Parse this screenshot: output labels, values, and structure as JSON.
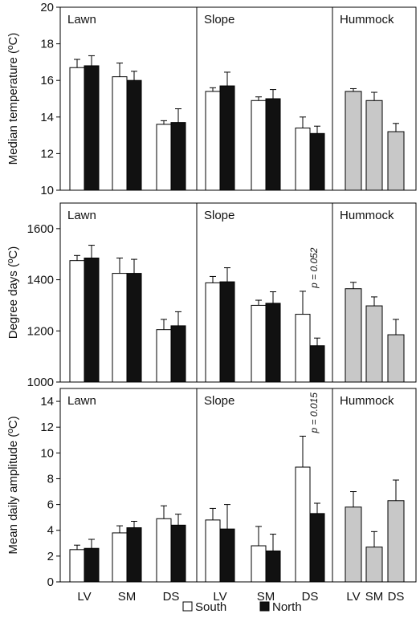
{
  "chart_data": {
    "type": "bar",
    "legend": {
      "placement": "bottom-center",
      "entries": [
        {
          "key": "south",
          "label": "South",
          "fill": "#ffffff"
        },
        {
          "key": "north",
          "label": "North",
          "fill": "#111111"
        }
      ]
    },
    "x_tick_labels": [
      "LV",
      "SM",
      "DS",
      "LV",
      "SM",
      "DS",
      "LV",
      "SM",
      "DS"
    ],
    "section_labels": [
      "Lawn",
      "Slope",
      "Hummock"
    ],
    "colors": {
      "south": "#ffffff",
      "north": "#111111",
      "hummock": "#c8c8c8",
      "axis": "#000000"
    },
    "panels": [
      {
        "id": "median",
        "ylabel": "Median temperature (ºC)",
        "ylim": [
          10,
          20
        ],
        "yticks": [
          10,
          12,
          14,
          16,
          18,
          20
        ],
        "sections": [
          {
            "label": "Lawn",
            "groups": [
              {
                "category": "LV",
                "bars": [
                  {
                    "series": "south",
                    "value": 16.7,
                    "err": 0.45
                  },
                  {
                    "series": "north",
                    "value": 16.8,
                    "err": 0.55
                  }
                ]
              },
              {
                "category": "SM",
                "bars": [
                  {
                    "series": "south",
                    "value": 16.2,
                    "err": 0.75
                  },
                  {
                    "series": "north",
                    "value": 16.0,
                    "err": 0.5
                  }
                ]
              },
              {
                "category": "DS",
                "bars": [
                  {
                    "series": "south",
                    "value": 13.6,
                    "err": 0.2
                  },
                  {
                    "series": "north",
                    "value": 13.7,
                    "err": 0.75
                  }
                ]
              }
            ]
          },
          {
            "label": "Slope",
            "groups": [
              {
                "category": "LV",
                "bars": [
                  {
                    "series": "south",
                    "value": 15.4,
                    "err": 0.2
                  },
                  {
                    "series": "north",
                    "value": 15.7,
                    "err": 0.75
                  }
                ]
              },
              {
                "category": "SM",
                "bars": [
                  {
                    "series": "south",
                    "value": 14.9,
                    "err": 0.2
                  },
                  {
                    "series": "north",
                    "value": 15.0,
                    "err": 0.5
                  }
                ]
              },
              {
                "category": "DS",
                "bars": [
                  {
                    "series": "south",
                    "value": 13.4,
                    "err": 0.6
                  },
                  {
                    "series": "north",
                    "value": 13.1,
                    "err": 0.4
                  }
                ]
              }
            ]
          },
          {
            "label": "Hummock",
            "groups": [
              {
                "category": "LV",
                "bars": [
                  {
                    "series": "hummock",
                    "value": 15.4,
                    "err": 0.15
                  }
                ]
              },
              {
                "category": "SM",
                "bars": [
                  {
                    "series": "hummock",
                    "value": 14.9,
                    "err": 0.45
                  }
                ]
              },
              {
                "category": "DS",
                "bars": [
                  {
                    "series": "hummock",
                    "value": 13.2,
                    "err": 0.45
                  }
                ]
              }
            ]
          }
        ]
      },
      {
        "id": "degree-days",
        "ylabel": "Degree days (ºC)",
        "ylim": [
          1000,
          1700
        ],
        "yticks": [
          1000,
          1200,
          1400,
          1600
        ],
        "sections": [
          {
            "label": "Lawn",
            "groups": [
              {
                "category": "LV",
                "bars": [
                  {
                    "series": "south",
                    "value": 1475,
                    "err": 20
                  },
                  {
                    "series": "north",
                    "value": 1485,
                    "err": 50
                  }
                ]
              },
              {
                "category": "SM",
                "bars": [
                  {
                    "series": "south",
                    "value": 1425,
                    "err": 60
                  },
                  {
                    "series": "north",
                    "value": 1425,
                    "err": 55
                  }
                ]
              },
              {
                "category": "DS",
                "bars": [
                  {
                    "series": "south",
                    "value": 1205,
                    "err": 40
                  },
                  {
                    "series": "north",
                    "value": 1220,
                    "err": 55
                  }
                ]
              }
            ]
          },
          {
            "label": "Slope",
            "groups": [
              {
                "category": "LV",
                "bars": [
                  {
                    "series": "south",
                    "value": 1388,
                    "err": 25
                  },
                  {
                    "series": "north",
                    "value": 1392,
                    "err": 55
                  }
                ]
              },
              {
                "category": "SM",
                "bars": [
                  {
                    "series": "south",
                    "value": 1300,
                    "err": 20
                  },
                  {
                    "series": "north",
                    "value": 1308,
                    "err": 45
                  }
                ]
              },
              {
                "category": "DS",
                "annotation": "p = 0.052",
                "bars": [
                  {
                    "series": "south",
                    "value": 1265,
                    "err": 90
                  },
                  {
                    "series": "north",
                    "value": 1142,
                    "err": 30
                  }
                ]
              }
            ]
          },
          {
            "label": "Hummock",
            "groups": [
              {
                "category": "LV",
                "bars": [
                  {
                    "series": "hummock",
                    "value": 1365,
                    "err": 25
                  }
                ]
              },
              {
                "category": "SM",
                "bars": [
                  {
                    "series": "hummock",
                    "value": 1298,
                    "err": 35
                  }
                ]
              },
              {
                "category": "DS",
                "bars": [
                  {
                    "series": "hummock",
                    "value": 1185,
                    "err": 60
                  }
                ]
              }
            ]
          }
        ]
      },
      {
        "id": "amplitude",
        "ylabel": "Mean daily amplitude (ºC)",
        "ylim": [
          0,
          15
        ],
        "yticks": [
          0,
          2,
          4,
          6,
          8,
          10,
          12,
          14
        ],
        "sections": [
          {
            "label": "Lawn",
            "groups": [
              {
                "category": "LV",
                "bars": [
                  {
                    "series": "south",
                    "value": 2.5,
                    "err": 0.35
                  },
                  {
                    "series": "north",
                    "value": 2.6,
                    "err": 0.7
                  }
                ]
              },
              {
                "category": "SM",
                "bars": [
                  {
                    "series": "south",
                    "value": 3.8,
                    "err": 0.55
                  },
                  {
                    "series": "north",
                    "value": 4.2,
                    "err": 0.5
                  }
                ]
              },
              {
                "category": "DS",
                "bars": [
                  {
                    "series": "south",
                    "value": 4.9,
                    "err": 1.0
                  },
                  {
                    "series": "north",
                    "value": 4.4,
                    "err": 0.85
                  }
                ]
              }
            ]
          },
          {
            "label": "Slope",
            "groups": [
              {
                "category": "LV",
                "bars": [
                  {
                    "series": "south",
                    "value": 4.8,
                    "err": 0.9
                  },
                  {
                    "series": "north",
                    "value": 4.1,
                    "err": 1.9
                  }
                ]
              },
              {
                "category": "SM",
                "bars": [
                  {
                    "series": "south",
                    "value": 2.8,
                    "err": 1.5
                  },
                  {
                    "series": "north",
                    "value": 2.4,
                    "err": 1.3
                  }
                ]
              },
              {
                "category": "DS",
                "annotation": "p = 0.015",
                "bars": [
                  {
                    "series": "south",
                    "value": 8.9,
                    "err": 2.4
                  },
                  {
                    "series": "north",
                    "value": 5.3,
                    "err": 0.8
                  }
                ]
              }
            ]
          },
          {
            "label": "Hummock",
            "groups": [
              {
                "category": "LV",
                "bars": [
                  {
                    "series": "hummock",
                    "value": 5.8,
                    "err": 1.2
                  }
                ]
              },
              {
                "category": "SM",
                "bars": [
                  {
                    "series": "hummock",
                    "value": 2.7,
                    "err": 1.2
                  }
                ]
              },
              {
                "category": "DS",
                "bars": [
                  {
                    "series": "hummock",
                    "value": 6.3,
                    "err": 1.6
                  }
                ]
              }
            ]
          }
        ]
      }
    ]
  }
}
